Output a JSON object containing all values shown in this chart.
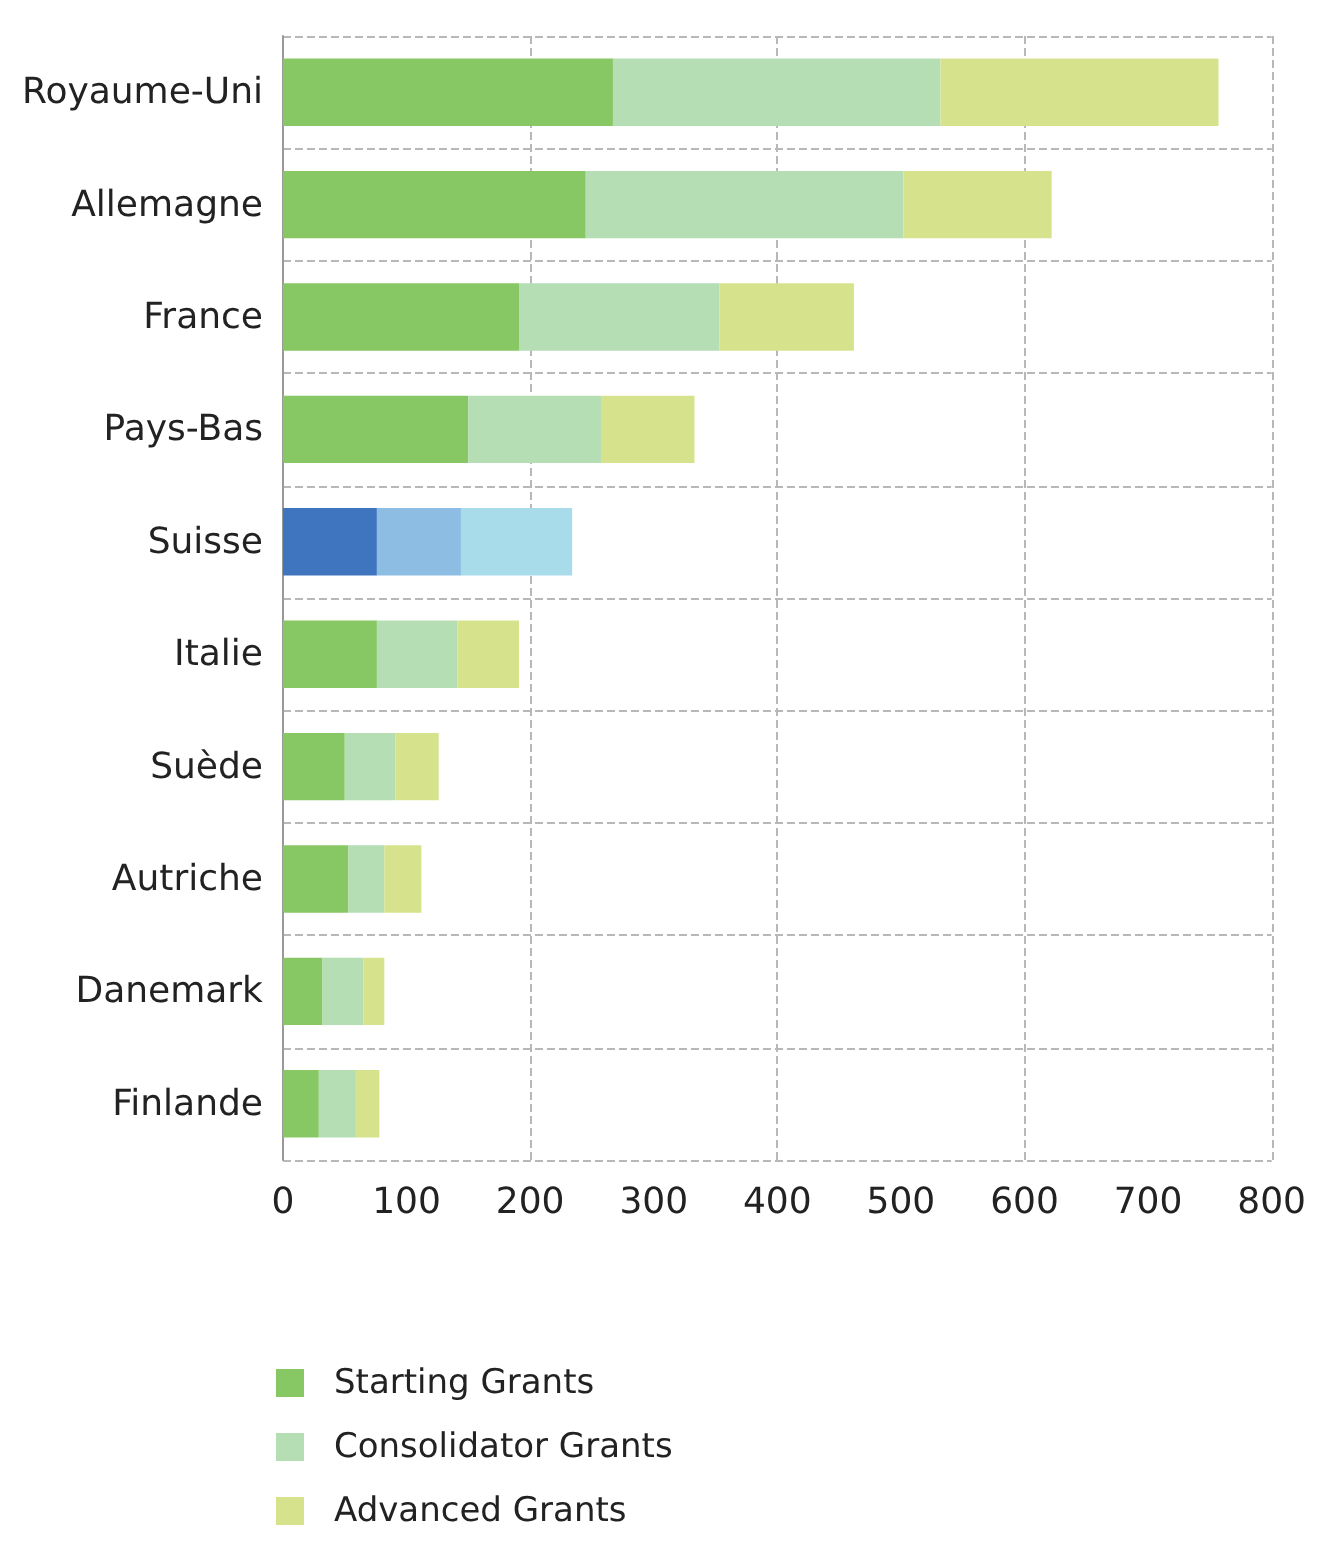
{
  "chart_data": {
    "type": "bar",
    "orientation": "horizontal",
    "stacked": true,
    "categories": [
      "Royaume-Uni",
      "Allemagne",
      "France",
      "Pays-Bas",
      "Suisse",
      "Italie",
      "Suède",
      "Autriche",
      "Danemark",
      "Finlande"
    ],
    "series": [
      {
        "name": "Starting Grants",
        "color": "#88c864",
        "colors": [
          "#88c864",
          "#88c864",
          "#88c864",
          "#88c864",
          "#3f74be",
          "#88c864",
          "#88c864",
          "#88c864",
          "#88c864",
          "#88c864"
        ],
        "values": [
          267,
          245,
          191,
          150,
          76,
          76,
          50,
          53,
          32,
          29
        ]
      },
      {
        "name": "Consolidator Grants",
        "color": "#b5deb4",
        "colors": [
          "#b5deb4",
          "#b5deb4",
          "#b5deb4",
          "#b5deb4",
          "#8dbde3",
          "#b5deb4",
          "#b5deb4",
          "#b5deb4",
          "#b5deb4",
          "#b5deb4"
        ],
        "values": [
          265,
          257,
          162,
          108,
          68,
          65,
          41,
          29,
          33,
          30
        ]
      },
      {
        "name": "Advanced Grants",
        "color": "#d6e38c",
        "colors": [
          "#d6e38c",
          "#d6e38c",
          "#d6e38c",
          "#d6e38c",
          "#a9dcea",
          "#d6e38c",
          "#d6e38c",
          "#d6e38c",
          "#d6e38c",
          "#d6e38c"
        ],
        "values": [
          225,
          120,
          109,
          75,
          90,
          50,
          35,
          30,
          17,
          19
        ]
      }
    ],
    "xlim": [
      0,
      800
    ],
    "xticks": [
      0,
      100,
      200,
      300,
      400,
      500,
      600,
      700,
      800
    ],
    "grid": true,
    "legend": "bottom left"
  }
}
